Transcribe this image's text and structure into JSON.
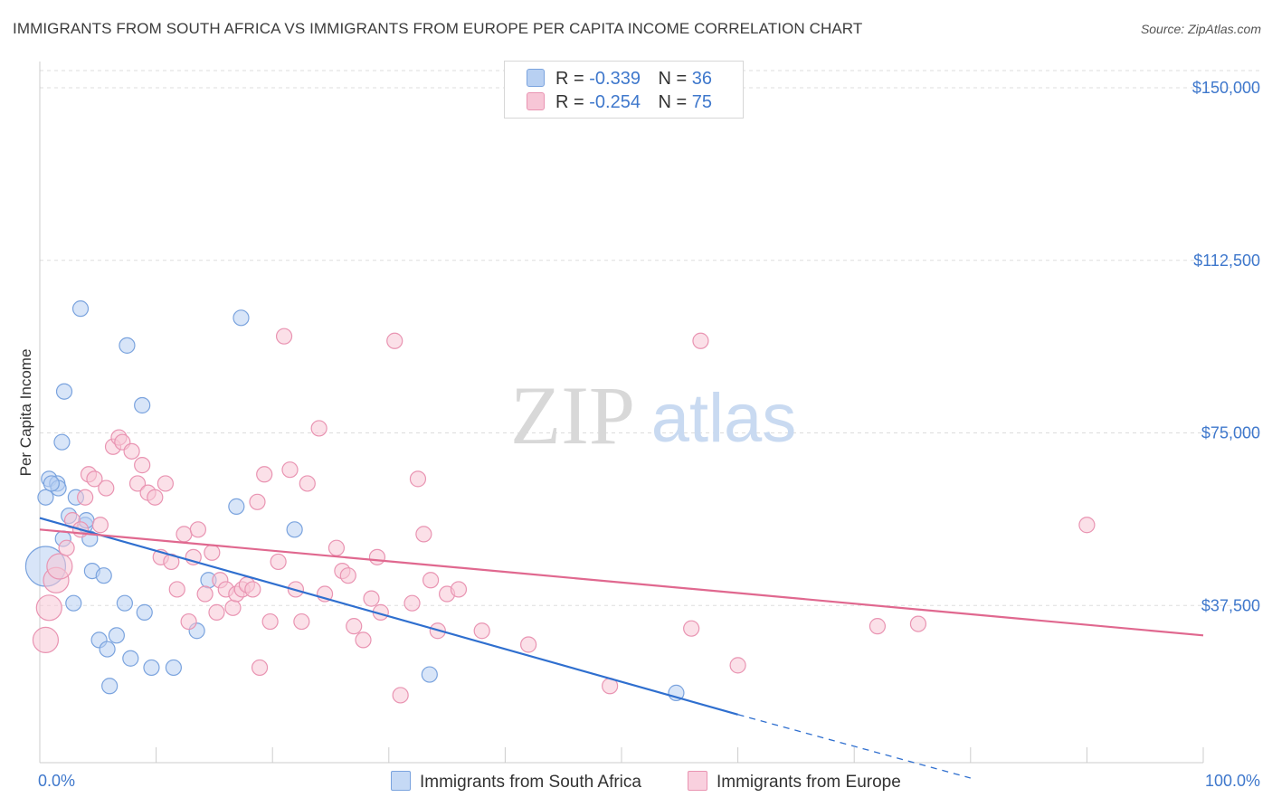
{
  "header": {
    "title": "IMMIGRANTS FROM SOUTH AFRICA VS IMMIGRANTS FROM EUROPE PER CAPITA INCOME CORRELATION CHART",
    "source": "Source: ZipAtlas.com"
  },
  "watermark": {
    "zip": "ZIP",
    "atlas": "atlas"
  },
  "legend": {
    "rows": [
      {
        "r_label": "R =",
        "r_value": "-0.339",
        "n_label": "N =",
        "n_value": "36"
      },
      {
        "r_label": "R =",
        "r_value": "-0.254",
        "n_label": "N =",
        "n_value": "75"
      }
    ]
  },
  "bottom_legend": {
    "series1": "Immigrants from South Africa",
    "series2": "Immigrants from Europe"
  },
  "colors": {
    "blue_fill": "#b8d0f2",
    "blue_stroke": "#7aa3de",
    "blue_line": "#2f6fcf",
    "pink_fill": "#f7c6d6",
    "pink_stroke": "#e994b2",
    "pink_line": "#e0688f",
    "tick_text": "#3f78cc",
    "grid": "#dddddd"
  },
  "chart_data": {
    "type": "scatter",
    "title": "IMMIGRANTS FROM SOUTH AFRICA VS IMMIGRANTS FROM EUROPE PER CAPITA INCOME CORRELATION CHART",
    "xlabel": "",
    "ylabel": "Per Capita Income",
    "xlim": [
      0,
      100
    ],
    "ylim": [
      0,
      152000
    ],
    "y_ticks": [
      {
        "value": 37500,
        "label": "$37,500"
      },
      {
        "value": 75000,
        "label": "$75,000"
      },
      {
        "value": 112500,
        "label": "$112,500"
      },
      {
        "value": 150000,
        "label": "$150,000"
      }
    ],
    "x_tick_labels": {
      "min": "0.0%",
      "max": "100.0%"
    },
    "grid": true,
    "legend_position": "top-center",
    "series": [
      {
        "name": "Immigrants from South Africa",
        "r": -0.339,
        "n": 36,
        "points": [
          [
            0.5,
            46000,
            3
          ],
          [
            0.5,
            61000,
            1
          ],
          [
            0.8,
            65000,
            1
          ],
          [
            1.5,
            64000,
            1
          ],
          [
            1.6,
            63000,
            1
          ],
          [
            1.9,
            73000,
            1
          ],
          [
            2.1,
            84000,
            1
          ],
          [
            2.5,
            57000,
            1
          ],
          [
            2.9,
            38000,
            1
          ],
          [
            3.1,
            61000,
            1
          ],
          [
            3.5,
            102000,
            1
          ],
          [
            3.9,
            55000,
            1
          ],
          [
            4.0,
            56000,
            1
          ],
          [
            4.3,
            52000,
            1
          ],
          [
            4.5,
            45000,
            1
          ],
          [
            5.1,
            30000,
            1
          ],
          [
            5.5,
            44000,
            1
          ],
          [
            5.8,
            28000,
            1
          ],
          [
            6.0,
            20000,
            1
          ],
          [
            6.6,
            31000,
            1
          ],
          [
            7.5,
            94000,
            1
          ],
          [
            7.3,
            38000,
            1
          ],
          [
            7.8,
            26000,
            1
          ],
          [
            8.8,
            81000,
            1
          ],
          [
            9.0,
            36000,
            1
          ],
          [
            9.6,
            24000,
            1
          ],
          [
            11.5,
            24000,
            1
          ],
          [
            13.5,
            32000,
            1
          ],
          [
            14.5,
            43000,
            1
          ],
          [
            16.9,
            59000,
            1
          ],
          [
            17.3,
            100000,
            1
          ],
          [
            21.9,
            54000,
            1
          ],
          [
            33.5,
            22500,
            1
          ],
          [
            54.7,
            18500,
            1
          ],
          [
            2.0,
            52000,
            1
          ],
          [
            1.0,
            64000,
            1
          ]
        ],
        "trend": {
          "x0": 0,
          "y0": 56500,
          "x1": 60,
          "y1": 13800,
          "dash_to_x": 80,
          "dash_to_y": 0
        }
      },
      {
        "name": "Immigrants from Europe",
        "r": -0.254,
        "n": 75,
        "points": [
          [
            0.5,
            30000,
            2
          ],
          [
            0.8,
            37000,
            2
          ],
          [
            1.4,
            43000,
            2
          ],
          [
            1.7,
            46000,
            2
          ],
          [
            2.3,
            50000,
            1
          ],
          [
            2.8,
            56000,
            1
          ],
          [
            3.5,
            54000,
            1
          ],
          [
            3.9,
            61000,
            1
          ],
          [
            4.2,
            66000,
            1
          ],
          [
            4.7,
            65000,
            1
          ],
          [
            5.2,
            55000,
            1
          ],
          [
            5.7,
            63000,
            1
          ],
          [
            6.3,
            72000,
            1
          ],
          [
            6.8,
            74000,
            1
          ],
          [
            7.1,
            73000,
            1
          ],
          [
            7.9,
            71000,
            1
          ],
          [
            8.4,
            64000,
            1
          ],
          [
            8.8,
            68000,
            1
          ],
          [
            9.3,
            62000,
            1
          ],
          [
            9.9,
            61000,
            1
          ],
          [
            10.4,
            48000,
            1
          ],
          [
            10.8,
            64000,
            1
          ],
          [
            11.3,
            47000,
            1
          ],
          [
            11.8,
            41000,
            1
          ],
          [
            12.4,
            53000,
            1
          ],
          [
            12.8,
            34000,
            1
          ],
          [
            13.2,
            48000,
            1
          ],
          [
            13.6,
            54000,
            1
          ],
          [
            14.2,
            40000,
            1
          ],
          [
            14.8,
            49000,
            1
          ],
          [
            15.2,
            36000,
            1
          ],
          [
            15.5,
            43000,
            1
          ],
          [
            16.0,
            41000,
            1
          ],
          [
            16.6,
            37000,
            1
          ],
          [
            16.9,
            40000,
            1
          ],
          [
            17.4,
            41000,
            1
          ],
          [
            17.8,
            42000,
            1
          ],
          [
            18.3,
            41000,
            1
          ],
          [
            18.7,
            60000,
            1
          ],
          [
            18.9,
            24000,
            1
          ],
          [
            19.3,
            66000,
            1
          ],
          [
            19.8,
            34000,
            1
          ],
          [
            20.5,
            47000,
            1
          ],
          [
            21.0,
            96000,
            1
          ],
          [
            21.5,
            67000,
            1
          ],
          [
            22.0,
            41000,
            1
          ],
          [
            22.5,
            34000,
            1
          ],
          [
            23.0,
            64000,
            1
          ],
          [
            24.0,
            76000,
            1
          ],
          [
            24.5,
            40000,
            1
          ],
          [
            25.5,
            50000,
            1
          ],
          [
            26.0,
            45000,
            1
          ],
          [
            26.5,
            44000,
            1
          ],
          [
            27.0,
            33000,
            1
          ],
          [
            27.8,
            30000,
            1
          ],
          [
            28.5,
            39000,
            1
          ],
          [
            29.0,
            48000,
            1
          ],
          [
            29.3,
            36000,
            1
          ],
          [
            30.5,
            95000,
            1
          ],
          [
            31.0,
            18000,
            1
          ],
          [
            32.0,
            38000,
            1
          ],
          [
            32.5,
            65000,
            1
          ],
          [
            33.0,
            53000,
            1
          ],
          [
            33.6,
            43000,
            1
          ],
          [
            34.2,
            32000,
            1
          ],
          [
            35.0,
            40000,
            1
          ],
          [
            36.0,
            41000,
            1
          ],
          [
            38.0,
            32000,
            1
          ],
          [
            42.0,
            29000,
            1
          ],
          [
            49.0,
            20000,
            1
          ],
          [
            56.0,
            32500,
            1
          ],
          [
            56.8,
            95000,
            1
          ],
          [
            60.0,
            24500,
            1
          ],
          [
            72.0,
            33000,
            1
          ],
          [
            90.0,
            55000,
            1
          ]
        ],
        "extra_points": [
          [
            75.5,
            33500,
            1
          ]
        ],
        "trend": {
          "x0": 0,
          "y0": 54000,
          "x1": 100,
          "y1": 31000
        }
      }
    ]
  }
}
